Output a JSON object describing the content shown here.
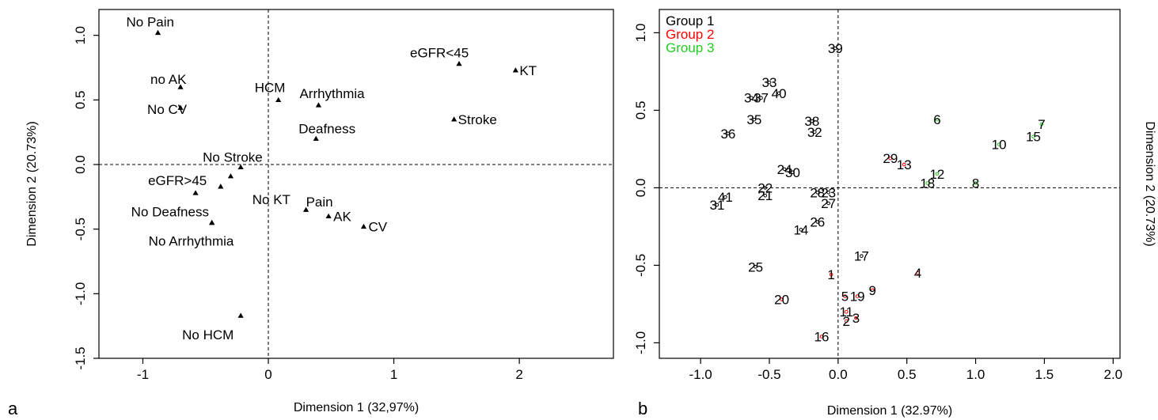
{
  "chart_data": [
    {
      "panel": "a",
      "type": "scatter",
      "xlabel": "Dimension 1 (32,97%)",
      "ylabel": "Dimension 2 (20.73%)",
      "xlim": [
        -1.35,
        2.75
      ],
      "ylim": [
        -1.5,
        1.2
      ],
      "xticks": [
        -1,
        0,
        1,
        2
      ],
      "yticks": [
        1.0,
        0.5,
        0.0,
        -0.5,
        -1.0,
        -1.5
      ],
      "xtick_labels": [
        "-1",
        "0",
        "1",
        "2"
      ],
      "ytick_labels": [
        "1.0",
        "0.5",
        "0.0",
        "-0.5",
        "-1.0",
        "-1.5"
      ],
      "reference_lines": {
        "x": 0,
        "y": 0
      },
      "points": [
        {
          "label": "No Pain",
          "x": -0.88,
          "y": 1.02
        },
        {
          "label": "no AK",
          "x": -0.7,
          "y": 0.6
        },
        {
          "label": "No CV",
          "x": -0.7,
          "y": 0.44
        },
        {
          "label": "HCM",
          "x": 0.08,
          "y": 0.5
        },
        {
          "label": "Arrhythmia",
          "x": 0.4,
          "y": 0.46
        },
        {
          "label": "eGFR<45",
          "x": 1.52,
          "y": 0.78
        },
        {
          "label": "KT",
          "x": 1.97,
          "y": 0.73
        },
        {
          "label": "Stroke",
          "x": 1.48,
          "y": 0.35
        },
        {
          "label": "Deafness",
          "x": 0.38,
          "y": 0.2
        },
        {
          "label": "No Stroke",
          "x": -0.22,
          "y": -0.02
        },
        {
          "label": "eGFR>45",
          "x": -0.58,
          "y": -0.22
        },
        {
          "label": "No KT",
          "x": -0.38,
          "y": -0.17
        },
        {
          "label": "",
          "x": -0.3,
          "y": -0.09
        },
        {
          "label": "No Deafness",
          "x": -0.45,
          "y": -0.45
        },
        {
          "label": "No Arrhythmia",
          "x": -0.45,
          "y": -0.45
        },
        {
          "label": "Pain",
          "x": 0.3,
          "y": -0.35
        },
        {
          "label": "AK",
          "x": 0.48,
          "y": -0.4
        },
        {
          "label": "CV",
          "x": 0.76,
          "y": -0.48
        },
        {
          "label": "No HCM",
          "x": -0.22,
          "y": -1.17
        }
      ],
      "panel_letter": "a"
    },
    {
      "panel": "b",
      "type": "scatter",
      "xlabel": "Dimension 1 (32.97%)",
      "ylabel": "Dimension 2 (20.73%)",
      "xlim": [
        -1.3,
        2.05
      ],
      "ylim": [
        -1.1,
        1.15
      ],
      "xticks": [
        -1.0,
        -0.5,
        0.0,
        0.5,
        1.0,
        1.5,
        2.0
      ],
      "yticks": [
        1.0,
        0.5,
        0.0,
        -0.5,
        -1.0
      ],
      "xtick_labels": [
        "-1.0",
        "-0.5",
        "0.0",
        "0.5",
        "1.0",
        "1.5",
        "2.0"
      ],
      "ytick_labels": [
        "1.0",
        "0.5",
        "0.0",
        "-0.5",
        "-1.0"
      ],
      "reference_lines": {
        "x": 0,
        "y": 0
      },
      "legend": {
        "placement": "top-left",
        "entries": [
          {
            "name": "Group 1",
            "color": "#000000"
          },
          {
            "name": "Group 2",
            "color": "#ff0000"
          },
          {
            "name": "Group 3",
            "color": "#22cc22"
          }
        ]
      },
      "series": [
        {
          "name": "Group 1",
          "color": "#000000",
          "points": [
            {
              "label": "39",
              "x": -0.02,
              "y": 0.9
            },
            {
              "label": "33",
              "x": -0.5,
              "y": 0.68
            },
            {
              "label": "40",
              "x": -0.43,
              "y": 0.61
            },
            {
              "label": "34",
              "x": -0.63,
              "y": 0.58
            },
            {
              "label": "37",
              "x": -0.56,
              "y": 0.58
            },
            {
              "label": "35",
              "x": -0.61,
              "y": 0.44
            },
            {
              "label": "38",
              "x": -0.19,
              "y": 0.43
            },
            {
              "label": "32",
              "x": -0.17,
              "y": 0.36
            },
            {
              "label": "36",
              "x": -0.8,
              "y": 0.35
            },
            {
              "label": "24",
              "x": -0.39,
              "y": 0.12
            },
            {
              "label": "30",
              "x": -0.33,
              "y": 0.1
            },
            {
              "label": "22",
              "x": -0.53,
              "y": 0.0
            },
            {
              "label": "21",
              "x": -0.53,
              "y": -0.05
            },
            {
              "label": "28",
              "x": -0.15,
              "y": -0.03
            },
            {
              "label": "23",
              "x": -0.07,
              "y": -0.03
            },
            {
              "label": "27",
              "x": -0.07,
              "y": -0.1
            },
            {
              "label": "41",
              "x": -0.82,
              "y": -0.06
            },
            {
              "label": "31",
              "x": -0.88,
              "y": -0.11
            },
            {
              "label": "26",
              "x": -0.15,
              "y": -0.22
            },
            {
              "label": "14",
              "x": -0.27,
              "y": -0.27
            },
            {
              "label": "17",
              "x": 0.17,
              "y": -0.44
            },
            {
              "label": "25",
              "x": -0.6,
              "y": -0.51
            }
          ]
        },
        {
          "name": "Group 2",
          "color": "#ff0000",
          "points": [
            {
              "label": "29",
              "x": 0.38,
              "y": 0.19
            },
            {
              "label": "13",
              "x": 0.48,
              "y": 0.15
            },
            {
              "label": "1",
              "x": -0.05,
              "y": -0.56
            },
            {
              "label": "4",
              "x": 0.58,
              "y": -0.55
            },
            {
              "label": "9",
              "x": 0.25,
              "y": -0.66
            },
            {
              "label": "5",
              "x": 0.05,
              "y": -0.7
            },
            {
              "label": "19",
              "x": 0.14,
              "y": -0.7
            },
            {
              "label": "20",
              "x": -0.41,
              "y": -0.72
            },
            {
              "label": "11",
              "x": 0.06,
              "y": -0.8
            },
            {
              "label": "2",
              "x": 0.06,
              "y": -0.86
            },
            {
              "label": "3",
              "x": 0.13,
              "y": -0.84
            },
            {
              "label": "16",
              "x": -0.12,
              "y": -0.96
            }
          ]
        },
        {
          "name": "Group 3",
          "color": "#22cc22",
          "points": [
            {
              "label": "6",
              "x": 0.72,
              "y": 0.44
            },
            {
              "label": "7",
              "x": 1.48,
              "y": 0.41
            },
            {
              "label": "15",
              "x": 1.42,
              "y": 0.33
            },
            {
              "label": "10",
              "x": 1.17,
              "y": 0.28
            },
            {
              "label": "12",
              "x": 0.72,
              "y": 0.09
            },
            {
              "label": "18",
              "x": 0.65,
              "y": 0.03
            },
            {
              "label": "8",
              "x": 1.0,
              "y": 0.03
            }
          ]
        }
      ],
      "panel_letter": "b"
    }
  ]
}
